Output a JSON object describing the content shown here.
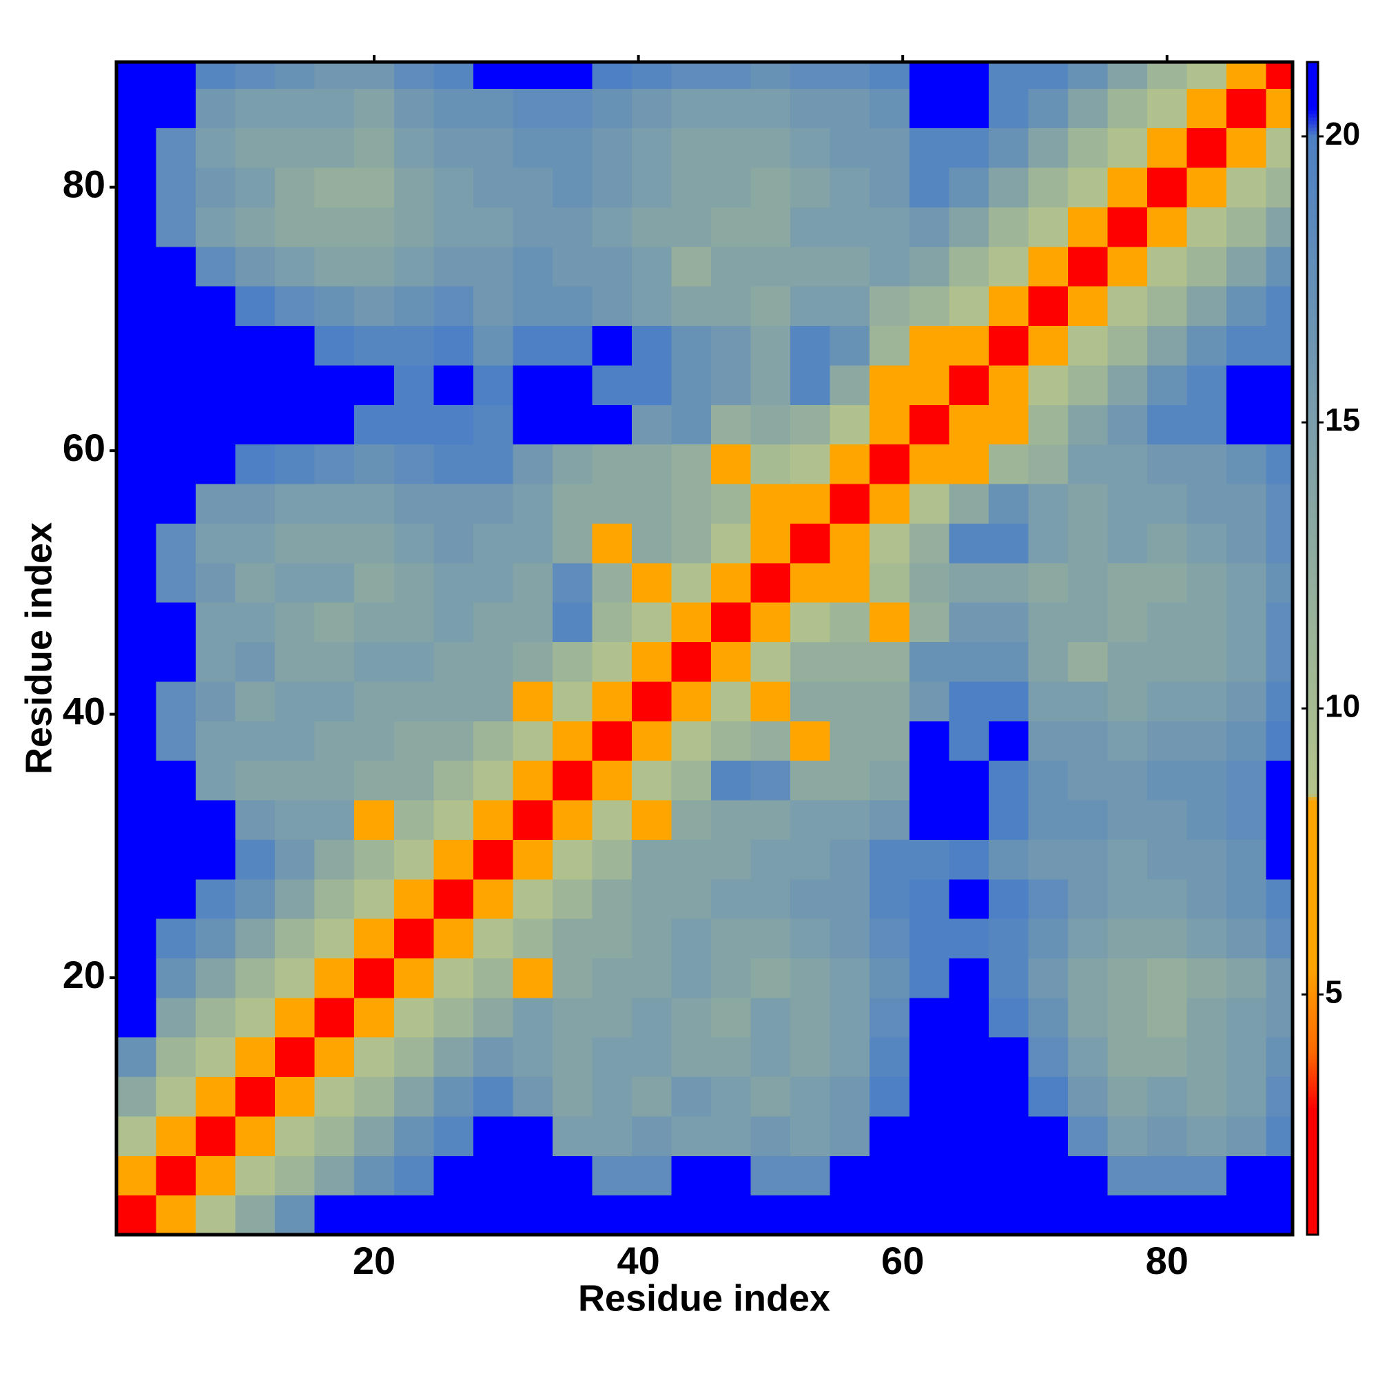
{
  "chart_data": {
    "type": "heatmap",
    "xlabel": "Residue index",
    "ylabel": "Residue index",
    "bins": [
      0.5,
      3.5,
      6.5,
      9.5,
      12.5,
      15.5,
      18.5,
      21.5,
      24.5,
      27.5,
      30.5,
      33.5,
      36.5,
      39.5,
      42.5,
      45.5,
      48.5,
      51.5,
      54.5,
      57.5,
      60.5,
      63.5,
      66.5,
      69.5,
      72.5,
      75.5,
      78.5,
      81.5,
      84.5,
      87.5,
      89.5
    ],
    "symmetric": true,
    "values": [
      [
        2,
        6,
        9,
        13,
        17,
        21,
        21,
        21,
        21,
        21,
        21,
        21,
        21,
        21,
        21,
        21,
        21,
        21,
        21,
        21,
        21,
        21,
        21,
        21,
        21,
        21,
        21,
        21,
        21,
        21
      ],
      [
        2,
        6,
        9,
        11,
        14,
        17,
        19,
        21,
        21,
        21,
        21,
        18,
        18,
        21,
        21,
        18,
        18,
        21,
        21,
        21,
        21,
        21,
        21,
        21,
        18,
        18,
        18,
        21,
        21
      ],
      [
        2,
        6,
        9,
        11,
        14,
        17,
        19,
        21,
        21,
        15,
        15,
        16,
        15,
        15,
        16,
        15,
        16,
        21,
        21,
        21,
        21,
        21,
        18,
        15,
        16,
        15,
        16,
        19
      ],
      [
        2,
        6,
        9,
        11,
        14,
        17,
        19,
        16,
        14,
        15,
        14,
        16,
        15,
        14,
        15,
        16,
        20,
        21,
        21,
        21,
        20,
        16,
        14,
        15,
        14,
        15,
        18
      ],
      [
        2,
        6,
        9,
        11,
        14,
        16,
        15,
        14,
        15,
        15,
        14,
        14,
        15,
        14,
        15,
        19,
        21,
        21,
        21,
        18,
        15,
        13,
        13,
        14,
        15,
        17
      ],
      [
        2,
        6,
        9,
        11,
        13,
        15,
        14,
        14,
        15,
        14,
        13,
        15,
        14,
        15,
        18,
        21,
        21,
        20,
        17,
        14,
        13,
        12,
        14,
        15,
        16
      ],
      [
        2,
        6,
        9,
        11,
        8,
        13,
        14,
        14,
        15,
        14,
        13,
        14,
        15,
        17,
        20,
        21,
        19,
        16,
        14,
        13,
        12,
        13,
        14,
        16
      ],
      [
        2,
        6,
        9,
        11,
        13,
        13,
        14,
        15,
        14,
        14,
        15,
        16,
        18,
        20,
        20,
        19,
        17,
        15,
        14,
        14,
        15,
        16,
        18
      ],
      [
        2,
        6,
        9,
        11,
        13,
        14,
        14,
        15,
        15,
        16,
        16,
        19,
        20,
        21,
        20,
        18,
        16,
        15,
        15,
        16,
        17,
        19
      ],
      [
        2,
        6,
        9,
        11,
        14,
        14,
        14,
        15,
        15,
        16,
        19,
        19,
        20,
        17,
        16,
        16,
        15,
        16,
        16,
        17,
        21
      ],
      [
        2,
        6,
        9,
        7,
        13,
        14,
        14,
        15,
        15,
        16,
        21,
        21,
        20,
        17,
        17,
        16,
        16,
        17,
        18,
        21
      ],
      [
        2,
        6,
        9,
        11,
        19,
        18,
        13,
        13,
        14,
        21,
        21,
        20,
        17,
        16,
        16,
        17,
        17,
        18,
        21
      ],
      [
        2,
        6,
        9,
        11,
        12,
        7,
        13,
        13,
        21,
        20,
        21,
        16,
        16,
        15,
        16,
        16,
        17,
        20
      ],
      [
        2,
        6,
        9,
        7,
        13,
        13,
        13,
        16,
        20,
        20,
        15,
        15,
        14,
        15,
        15,
        16,
        19
      ],
      [
        2,
        6,
        9,
        12,
        12,
        12,
        17,
        17,
        17,
        14,
        12,
        14,
        14,
        14,
        15,
        18
      ],
      [
        2,
        6,
        9,
        11,
        7,
        12,
        16,
        16,
        14,
        14,
        13,
        14,
        14,
        15,
        18
      ],
      [
        2,
        6,
        7,
        10,
        13,
        14,
        14,
        13,
        14,
        13,
        13,
        14,
        15,
        17
      ],
      [
        2,
        6,
        9,
        12,
        19,
        19,
        15,
        14,
        15,
        14,
        15,
        16,
        18
      ],
      [
        2,
        6,
        9,
        13,
        17,
        15,
        14,
        15,
        15,
        16,
        16,
        18
      ],
      [
        2,
        6,
        8,
        11,
        12,
        15,
        15,
        16,
        16,
        17,
        19
      ],
      [
        2,
        6,
        8,
        11,
        14,
        16,
        19,
        19,
        21,
        21
      ],
      [
        2,
        6,
        9,
        11,
        14,
        17,
        19,
        21,
        21
      ],
      [
        2,
        6,
        9,
        11,
        14,
        17,
        19,
        19
      ],
      [
        2,
        6,
        9,
        11,
        14,
        17,
        19
      ],
      [
        2,
        6,
        9,
        11,
        14,
        17
      ],
      [
        2,
        6,
        9,
        11,
        14
      ],
      [
        2,
        6,
        9,
        11
      ],
      [
        2,
        6,
        9
      ],
      [
        2,
        6
      ],
      [
        2
      ]
    ],
    "xlim": [
      0.5,
      89.5
    ],
    "ylim": [
      0.5,
      89.5
    ],
    "xticks": [
      20,
      40,
      60,
      80
    ],
    "yticks": [
      20,
      40,
      60,
      80
    ],
    "colorbar": {
      "lim": [
        0.8,
        21.3
      ],
      "ticks": [
        5,
        10,
        15,
        20
      ]
    },
    "colorscale": [
      [
        0.8,
        "#ff0000"
      ],
      [
        3,
        "#ff0000"
      ],
      [
        4,
        "#ff6a00"
      ],
      [
        5.5,
        "#ffa500"
      ],
      [
        8.4,
        "#ffa500"
      ],
      [
        8.5,
        "#b4c48a"
      ],
      [
        20,
        "#4d80c4"
      ],
      [
        20.5,
        "#0000ff"
      ],
      [
        21.3,
        "#0000ff"
      ]
    ]
  }
}
